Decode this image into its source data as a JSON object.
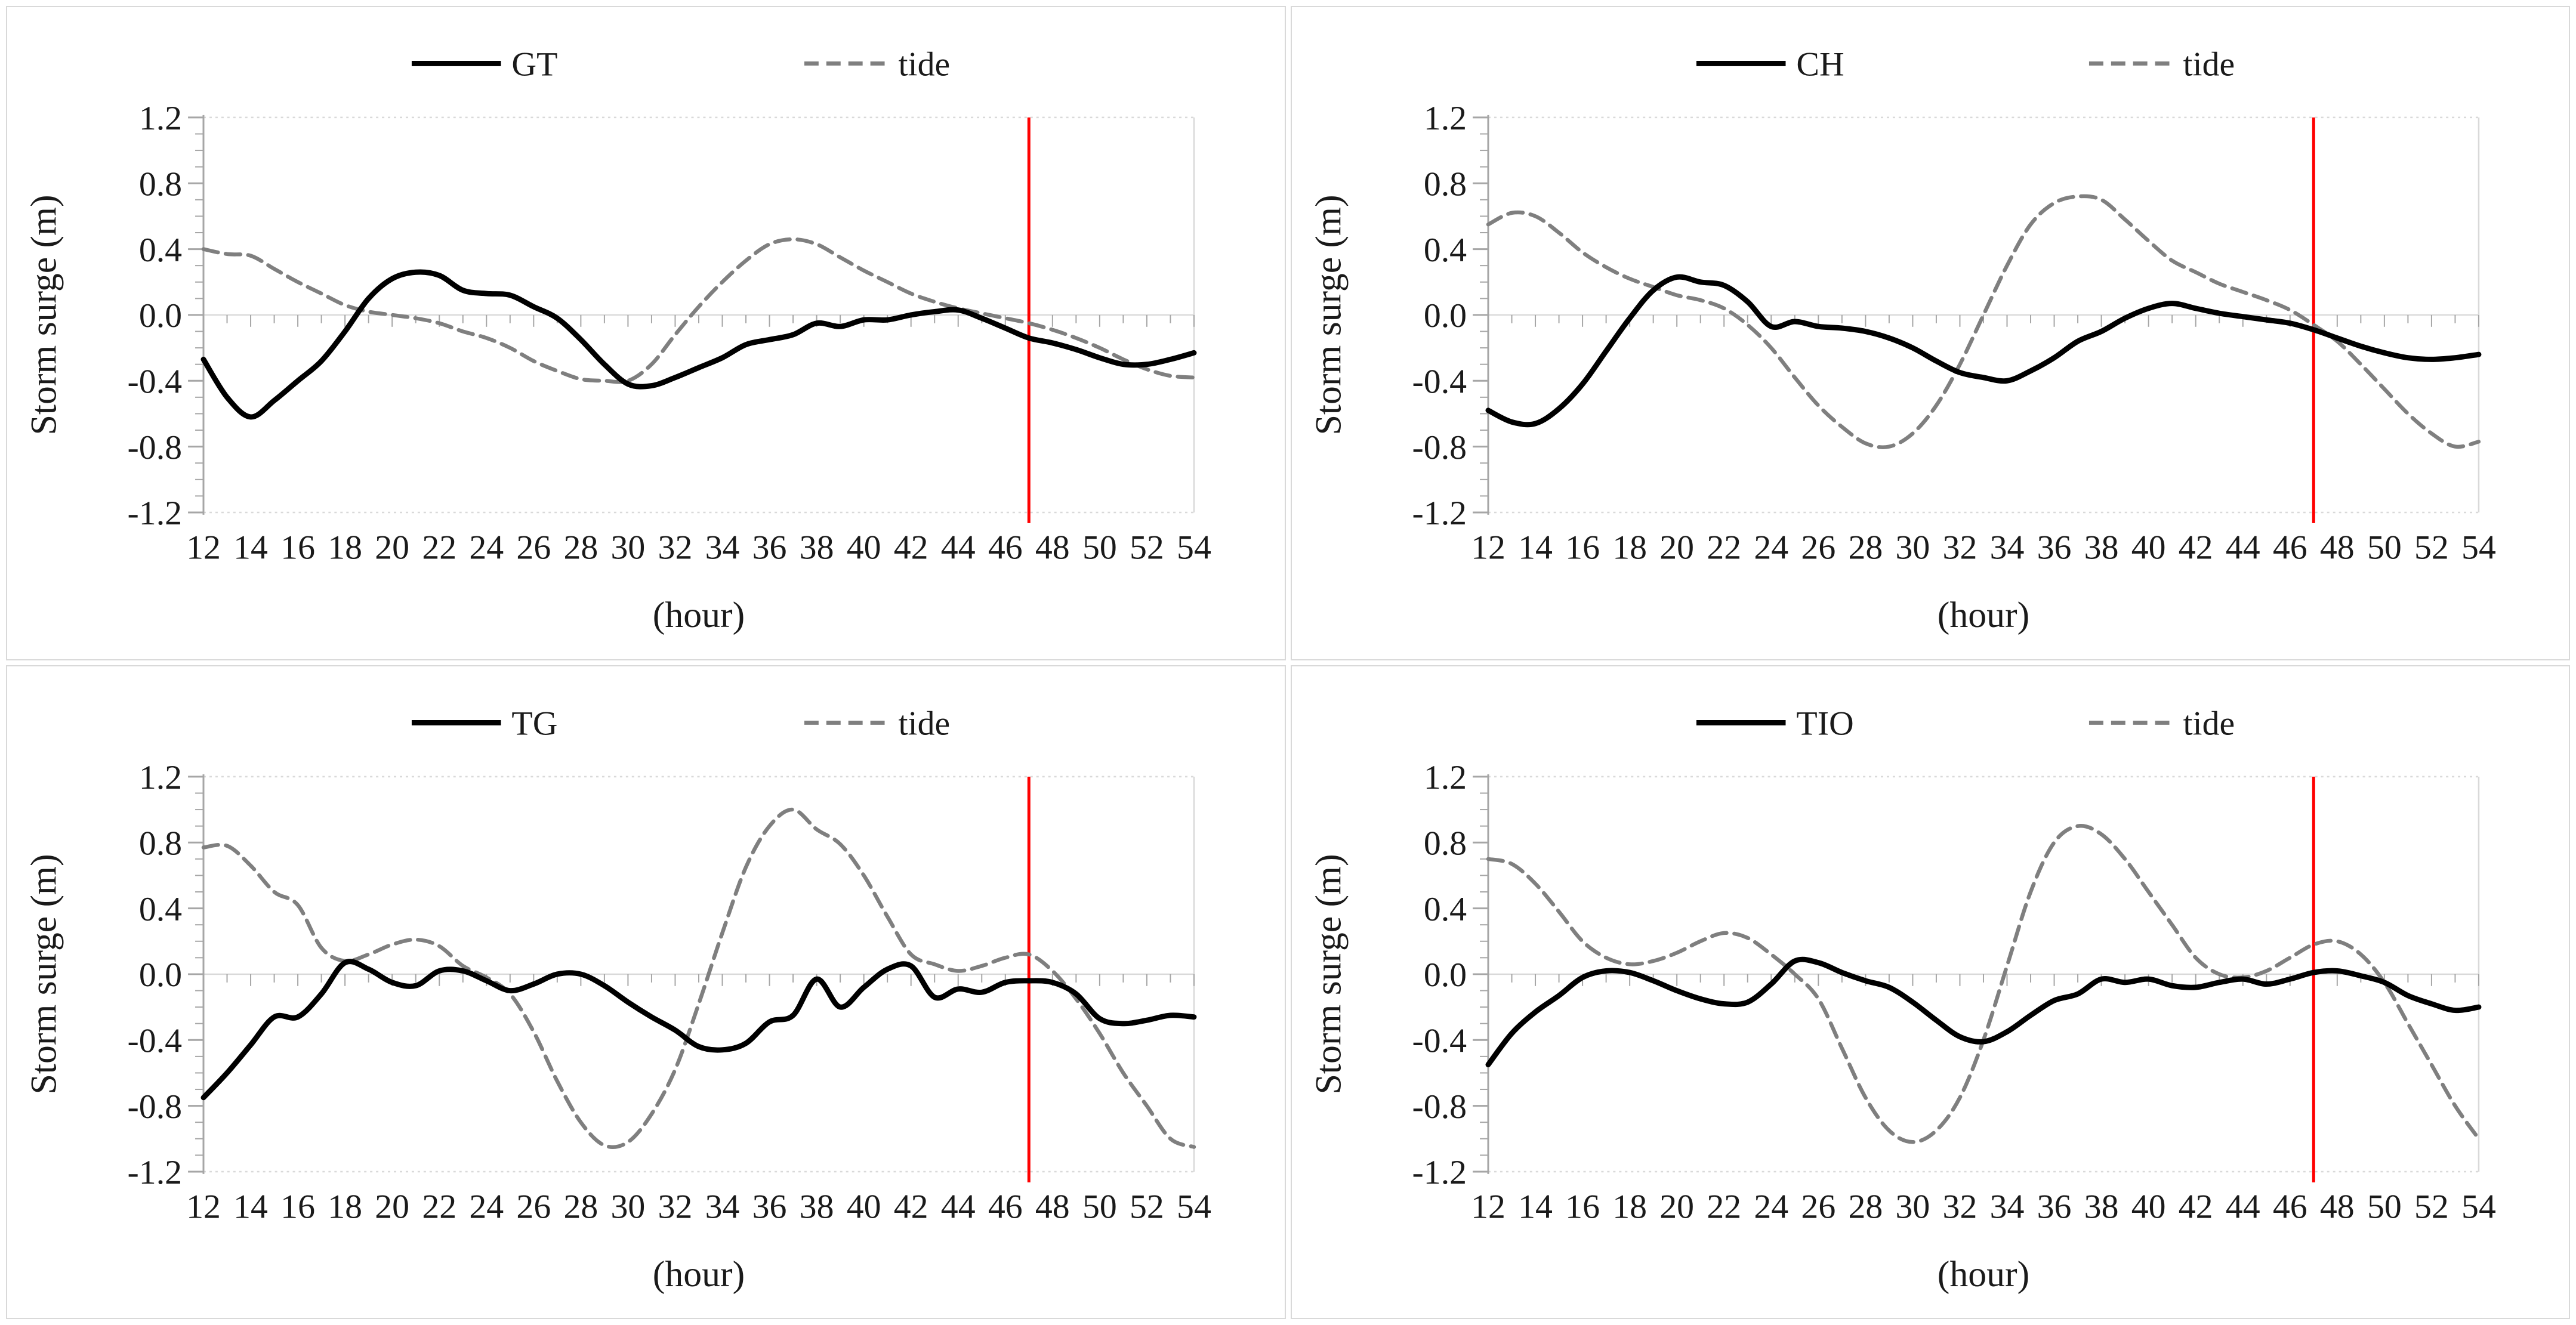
{
  "figure": {
    "description_labels": {
      "y_axis_title": "Storm surge (m)",
      "x_axis_title": "(hour)"
    }
  },
  "colors": {
    "station_line": "#000000",
    "tide_line": "#7f7f7f",
    "reference_line": "#ff0000",
    "zero_gridline": "#d9d9d9",
    "plot_border": "#d9d9d9",
    "axis_line": "#a6a6a6",
    "tick": "#a6a6a6",
    "text": "#1a1a1a",
    "panel_border": "#d9d9d9",
    "background": "#ffffff"
  },
  "axes": {
    "ylabel": "Storm surge (m)",
    "xlabel": "(hour)",
    "ylim": [
      -1.2,
      1.2
    ],
    "ytick_step": 0.4,
    "yminor_step": 0.1,
    "xlim": [
      12,
      54
    ],
    "xlabel_step": 2,
    "xtick_minor_step": 1,
    "ytick_labels": [
      "1.2",
      "0.8",
      "0.4",
      "0.0",
      "-0.4",
      "-0.8",
      "-1.2"
    ],
    "xtick_labels": [
      "12",
      "14",
      "16",
      "18",
      "20",
      "22",
      "24",
      "26",
      "28",
      "30",
      "32",
      "34",
      "36",
      "38",
      "40",
      "42",
      "44",
      "46",
      "48",
      "50",
      "52",
      "54"
    ],
    "grid": "zero-line-only",
    "legend_position": "top-center"
  },
  "chart_data": [
    {
      "type": "line",
      "panel": "top-left",
      "legend": [
        "GT",
        "tide"
      ],
      "x": [
        12,
        13,
        14,
        15,
        16,
        17,
        18,
        19,
        20,
        21,
        22,
        23,
        24,
        25,
        26,
        27,
        28,
        29,
        30,
        31,
        32,
        33,
        34,
        35,
        36,
        37,
        38,
        39,
        40,
        41,
        42,
        43,
        44,
        45,
        46,
        47,
        48,
        49,
        50,
        51,
        52,
        53,
        54
      ],
      "series": [
        {
          "name": "GT",
          "style": "solid",
          "values": [
            -0.27,
            -0.5,
            -0.62,
            -0.52,
            -0.4,
            -0.28,
            -0.1,
            0.1,
            0.22,
            0.26,
            0.24,
            0.15,
            0.13,
            0.12,
            0.05,
            -0.02,
            -0.15,
            -0.3,
            -0.42,
            -0.43,
            -0.38,
            -0.32,
            -0.26,
            -0.18,
            -0.15,
            -0.12,
            -0.05,
            -0.07,
            -0.03,
            -0.03,
            0.0,
            0.02,
            0.03,
            -0.02,
            -0.08,
            -0.14,
            -0.17,
            -0.21,
            -0.26,
            -0.3,
            -0.3,
            -0.27,
            -0.23
          ]
        },
        {
          "name": "tide",
          "style": "dashed",
          "values": [
            0.4,
            0.37,
            0.36,
            0.28,
            0.2,
            0.13,
            0.06,
            0.02,
            0.0,
            -0.02,
            -0.05,
            -0.1,
            -0.14,
            -0.2,
            -0.28,
            -0.34,
            -0.39,
            -0.4,
            -0.4,
            -0.3,
            -0.12,
            0.05,
            0.2,
            0.33,
            0.43,
            0.46,
            0.43,
            0.35,
            0.27,
            0.2,
            0.13,
            0.08,
            0.04,
            0.01,
            -0.02,
            -0.05,
            -0.09,
            -0.14,
            -0.2,
            -0.27,
            -0.33,
            -0.37,
            -0.38
          ]
        }
      ],
      "red_line_hour": 47
    },
    {
      "type": "line",
      "panel": "top-right",
      "legend": [
        "CH",
        "tide"
      ],
      "x": [
        12,
        13,
        14,
        15,
        16,
        17,
        18,
        19,
        20,
        21,
        22,
        23,
        24,
        25,
        26,
        27,
        28,
        29,
        30,
        31,
        32,
        33,
        34,
        35,
        36,
        37,
        38,
        39,
        40,
        41,
        42,
        43,
        44,
        45,
        46,
        47,
        48,
        49,
        50,
        51,
        52,
        53,
        54
      ],
      "series": [
        {
          "name": "CH",
          "style": "solid",
          "values": [
            -0.58,
            -0.65,
            -0.66,
            -0.57,
            -0.42,
            -0.22,
            -0.02,
            0.15,
            0.23,
            0.2,
            0.18,
            0.08,
            -0.07,
            -0.04,
            -0.07,
            -0.08,
            -0.1,
            -0.14,
            -0.2,
            -0.28,
            -0.35,
            -0.38,
            -0.4,
            -0.34,
            -0.26,
            -0.16,
            -0.1,
            -0.02,
            0.04,
            0.07,
            0.04,
            0.01,
            -0.01,
            -0.03,
            -0.05,
            -0.09,
            -0.14,
            -0.19,
            -0.23,
            -0.26,
            -0.27,
            -0.26,
            -0.24
          ]
        },
        {
          "name": "tide",
          "style": "dashed",
          "values": [
            0.55,
            0.62,
            0.6,
            0.5,
            0.38,
            0.29,
            0.22,
            0.17,
            0.12,
            0.09,
            0.04,
            -0.06,
            -0.2,
            -0.38,
            -0.55,
            -0.68,
            -0.78,
            -0.8,
            -0.72,
            -0.55,
            -0.3,
            0.0,
            0.3,
            0.55,
            0.68,
            0.72,
            0.7,
            0.58,
            0.45,
            0.33,
            0.26,
            0.19,
            0.14,
            0.09,
            0.03,
            -0.06,
            -0.16,
            -0.3,
            -0.45,
            -0.6,
            -0.72,
            -0.8,
            -0.77
          ]
        }
      ],
      "red_line_hour": 47
    },
    {
      "type": "line",
      "panel": "bottom-left",
      "legend": [
        "TG",
        "tide"
      ],
      "x": [
        12,
        13,
        14,
        15,
        16,
        17,
        18,
        19,
        20,
        21,
        22,
        23,
        24,
        25,
        26,
        27,
        28,
        29,
        30,
        31,
        32,
        33,
        34,
        35,
        36,
        37,
        38,
        39,
        40,
        41,
        42,
        43,
        44,
        45,
        46,
        47,
        48,
        49,
        50,
        51,
        52,
        53,
        54
      ],
      "series": [
        {
          "name": "TG",
          "style": "solid",
          "values": [
            -0.75,
            -0.6,
            -0.43,
            -0.26,
            -0.26,
            -0.12,
            0.07,
            0.03,
            -0.05,
            -0.07,
            0.02,
            0.02,
            -0.04,
            -0.1,
            -0.06,
            0.0,
            0.0,
            -0.07,
            -0.17,
            -0.26,
            -0.34,
            -0.44,
            -0.46,
            -0.42,
            -0.29,
            -0.25,
            -0.03,
            -0.2,
            -0.08,
            0.03,
            0.05,
            -0.14,
            -0.09,
            -0.11,
            -0.05,
            -0.04,
            -0.05,
            -0.12,
            -0.27,
            -0.3,
            -0.28,
            -0.25,
            -0.26
          ]
        },
        {
          "name": "tide",
          "style": "dashed",
          "values": [
            0.77,
            0.78,
            0.66,
            0.5,
            0.42,
            0.16,
            0.08,
            0.12,
            0.18,
            0.21,
            0.17,
            0.05,
            -0.02,
            -0.12,
            -0.35,
            -0.65,
            -0.9,
            -1.04,
            -1.02,
            -0.85,
            -0.58,
            -0.18,
            0.25,
            0.65,
            0.9,
            1.0,
            0.88,
            0.79,
            0.6,
            0.35,
            0.12,
            0.06,
            0.02,
            0.05,
            0.1,
            0.12,
            0.02,
            -0.15,
            -0.36,
            -0.6,
            -0.8,
            -1.0,
            -1.05
          ]
        }
      ],
      "red_line_hour": 47
    },
    {
      "type": "line",
      "panel": "bottom-right",
      "legend": [
        "TIO",
        "tide"
      ],
      "x": [
        12,
        13,
        14,
        15,
        16,
        17,
        18,
        19,
        20,
        21,
        22,
        23,
        24,
        25,
        26,
        27,
        28,
        29,
        30,
        31,
        32,
        33,
        34,
        35,
        36,
        37,
        38,
        39,
        40,
        41,
        42,
        43,
        44,
        45,
        46,
        47,
        48,
        49,
        50,
        51,
        52,
        53,
        54
      ],
      "series": [
        {
          "name": "TIO",
          "style": "solid",
          "values": [
            -0.55,
            -0.36,
            -0.23,
            -0.13,
            -0.02,
            0.02,
            0.01,
            -0.04,
            -0.1,
            -0.15,
            -0.18,
            -0.17,
            -0.06,
            0.08,
            0.07,
            0.01,
            -0.04,
            -0.08,
            -0.17,
            -0.28,
            -0.38,
            -0.41,
            -0.35,
            -0.25,
            -0.16,
            -0.12,
            -0.03,
            -0.05,
            -0.03,
            -0.07,
            -0.08,
            -0.05,
            -0.03,
            -0.06,
            -0.03,
            0.01,
            0.02,
            -0.01,
            -0.05,
            -0.13,
            -0.18,
            -0.22,
            -0.2
          ]
        },
        {
          "name": "tide",
          "style": "dashed",
          "values": [
            0.7,
            0.67,
            0.55,
            0.38,
            0.2,
            0.1,
            0.06,
            0.08,
            0.13,
            0.2,
            0.25,
            0.22,
            0.12,
            0.0,
            -0.15,
            -0.45,
            -0.75,
            -0.95,
            -1.02,
            -0.95,
            -0.75,
            -0.4,
            0.05,
            0.5,
            0.8,
            0.9,
            0.85,
            0.7,
            0.5,
            0.3,
            0.1,
            0.0,
            -0.02,
            0.02,
            0.1,
            0.18,
            0.2,
            0.12,
            -0.05,
            -0.3,
            -0.55,
            -0.8,
            -1.0
          ]
        }
      ],
      "red_line_hour": 47
    }
  ]
}
